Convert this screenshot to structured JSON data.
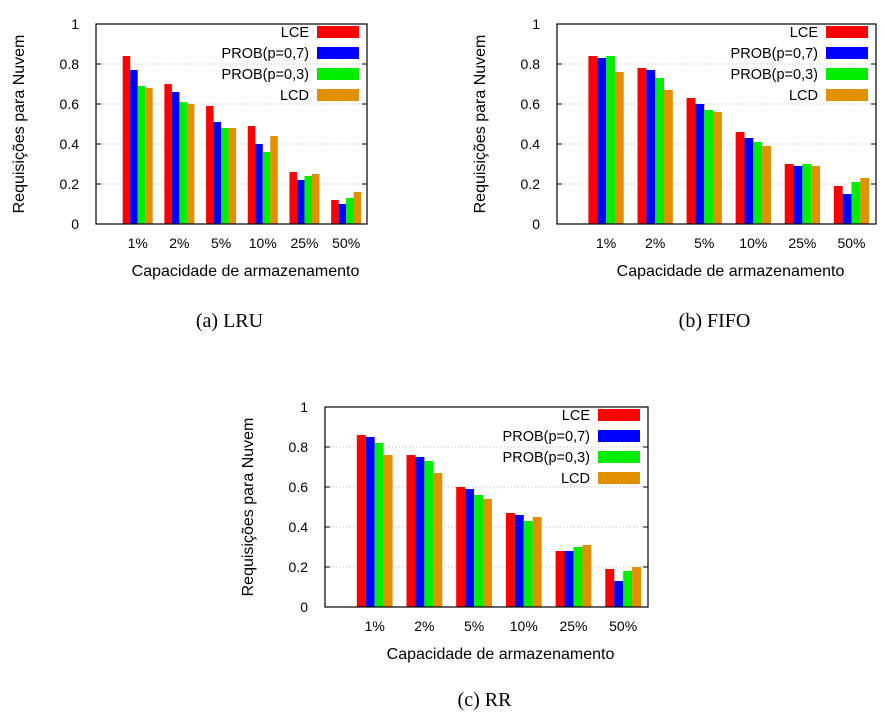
{
  "series_colors": [
    "#ff0000",
    "#0000ff",
    "#00ee00",
    "#e09000"
  ],
  "chart_data": [
    {
      "type": "bar",
      "caption": "(a)  LRU",
      "xlabel": "Capacidade de armazenamento",
      "ylabel": "Requisições para Nuvem",
      "ylim": [
        0,
        1
      ],
      "yticks": [
        "0",
        "0.2",
        "0.4",
        "0.6",
        "0.8",
        "1"
      ],
      "grid": true,
      "legend_position": "top-right",
      "categories": [
        "1%",
        "2%",
        "5%",
        "10%",
        "25%",
        "50%"
      ],
      "series": [
        {
          "name": "LCE",
          "values": [
            0.84,
            0.7,
            0.59,
            0.49,
            0.26,
            0.12
          ]
        },
        {
          "name": "PROB(p=0,7)",
          "values": [
            0.77,
            0.66,
            0.51,
            0.4,
            0.22,
            0.1
          ]
        },
        {
          "name": "PROB(p=0,3)",
          "values": [
            0.69,
            0.61,
            0.48,
            0.36,
            0.24,
            0.13
          ]
        },
        {
          "name": "LCD",
          "values": [
            0.68,
            0.6,
            0.48,
            0.44,
            0.25,
            0.16
          ]
        }
      ]
    },
    {
      "type": "bar",
      "caption": "(b)  FIFO",
      "xlabel": "Capacidade de armazenamento",
      "ylabel": "Requisições para Nuvem",
      "ylim": [
        0,
        1
      ],
      "yticks": [
        "0",
        "0.2",
        "0.4",
        "0.6",
        "0.8",
        "1"
      ],
      "grid": true,
      "legend_position": "top-right",
      "categories": [
        "1%",
        "2%",
        "5%",
        "10%",
        "25%",
        "50%"
      ],
      "series": [
        {
          "name": "LCE",
          "values": [
            0.84,
            0.78,
            0.63,
            0.46,
            0.3,
            0.19
          ]
        },
        {
          "name": "PROB(p=0,7)",
          "values": [
            0.83,
            0.77,
            0.6,
            0.43,
            0.29,
            0.15
          ]
        },
        {
          "name": "PROB(p=0,3)",
          "values": [
            0.84,
            0.73,
            0.57,
            0.41,
            0.3,
            0.21
          ]
        },
        {
          "name": "LCD",
          "values": [
            0.76,
            0.67,
            0.56,
            0.39,
            0.29,
            0.23
          ]
        }
      ]
    },
    {
      "type": "bar",
      "caption": "(c)  RR",
      "xlabel": "Capacidade de armazenamento",
      "ylabel": "Requisições para Nuvem",
      "ylim": [
        0,
        1
      ],
      "yticks": [
        "0",
        "0.2",
        "0.4",
        "0.6",
        "0.8",
        "1"
      ],
      "grid": true,
      "legend_position": "top-right",
      "categories": [
        "1%",
        "2%",
        "5%",
        "10%",
        "25%",
        "50%"
      ],
      "series": [
        {
          "name": "LCE",
          "values": [
            0.86,
            0.76,
            0.6,
            0.47,
            0.28,
            0.19
          ]
        },
        {
          "name": "PROB(p=0,7)",
          "values": [
            0.85,
            0.75,
            0.59,
            0.46,
            0.28,
            0.13
          ]
        },
        {
          "name": "PROB(p=0,3)",
          "values": [
            0.82,
            0.73,
            0.56,
            0.43,
            0.3,
            0.18
          ]
        },
        {
          "name": "LCD",
          "values": [
            0.76,
            0.67,
            0.54,
            0.45,
            0.31,
            0.2
          ]
        }
      ]
    }
  ]
}
